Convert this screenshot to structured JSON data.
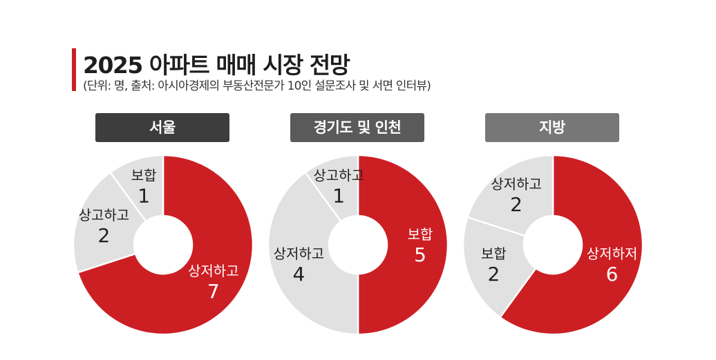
{
  "header": {
    "title": "2025 아파트 매매 시장 전망",
    "subtitle": "(단위: 명, 출처: 아시아경제의 부동산전문가 10인 설문조사 및 서면 인터뷰)"
  },
  "colors": {
    "accent": "#cc1f24",
    "neutral_slice": "#e1e1e1",
    "seoul_label_bg": "#3d3d3d",
    "gyeonggi_label_bg": "#5a5a5a",
    "jibang_label_bg": "#777777"
  },
  "chart_data": [
    {
      "type": "pie",
      "style": "donut",
      "title": "서울",
      "slices": [
        {
          "label": "상저하고",
          "value": 7,
          "color": "#cc1f24"
        },
        {
          "label": "상고하고",
          "value": 2,
          "color": "#e1e1e1"
        },
        {
          "label": "보합",
          "value": 1,
          "color": "#e1e1e1"
        }
      ]
    },
    {
      "type": "pie",
      "style": "donut",
      "title": "경기도 및 인천",
      "slices": [
        {
          "label": "보합",
          "value": 5,
          "color": "#cc1f24"
        },
        {
          "label": "상저하고",
          "value": 4,
          "color": "#e1e1e1"
        },
        {
          "label": "상고하고",
          "value": 1,
          "color": "#e1e1e1"
        }
      ]
    },
    {
      "type": "pie",
      "style": "donut",
      "title": "지방",
      "slices": [
        {
          "label": "상저하저",
          "value": 6,
          "color": "#cc1f24"
        },
        {
          "label": "보합",
          "value": 2,
          "color": "#e1e1e1"
        },
        {
          "label": "상저하고",
          "value": 2,
          "color": "#e1e1e1"
        }
      ]
    }
  ]
}
